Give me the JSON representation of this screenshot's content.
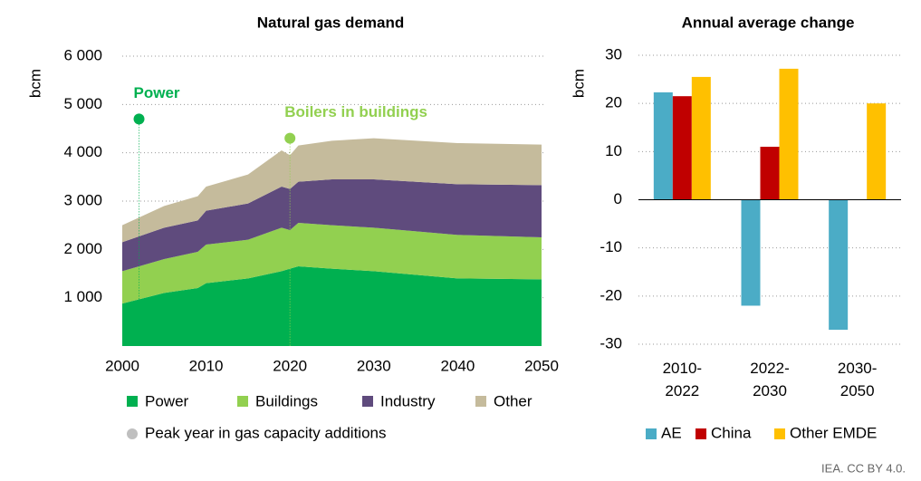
{
  "chart_data": [
    {
      "type": "stacked_area",
      "title": "Natural gas demand",
      "ylabel": "bcm",
      "x": [
        2000,
        2005,
        2009,
        2010,
        2015,
        2019,
        2020,
        2021,
        2025,
        2030,
        2040,
        2050
      ],
      "series": [
        {
          "name": "Power",
          "color": "#00b050",
          "values": [
            880,
            1100,
            1200,
            1300,
            1400,
            1550,
            1600,
            1650,
            1600,
            1550,
            1400,
            1380
          ]
        },
        {
          "name": "Buildings",
          "color": "#92d050",
          "values": [
            670,
            700,
            750,
            800,
            800,
            900,
            800,
            900,
            900,
            900,
            900,
            870
          ]
        },
        {
          "name": "Industry",
          "color": "#5f4b7d",
          "values": [
            600,
            650,
            650,
            700,
            750,
            850,
            850,
            850,
            950,
            1000,
            1050,
            1080
          ]
        },
        {
          "name": "Other",
          "color": "#c5bb9c",
          "values": [
            350,
            450,
            500,
            500,
            600,
            750,
            700,
            750,
            800,
            850,
            850,
            840
          ]
        }
      ],
      "annotations": [
        {
          "text": "Power",
          "x": 2002,
          "y": 4700,
          "color": "#00b050"
        },
        {
          "text": "Boilers in buildings",
          "x": 2020,
          "y": 4300,
          "color": "#92d050"
        }
      ],
      "marker_legend": "Peak year in gas capacity additions",
      "xlim": [
        2000,
        2050
      ],
      "xticks": [
        2000,
        2010,
        2020,
        2030,
        2040,
        2050
      ],
      "ylim": [
        0,
        6000
      ],
      "yticks": [
        {
          "value": 1000,
          "label": "1 000"
        },
        {
          "value": 2000,
          "label": "2 000"
        },
        {
          "value": 3000,
          "label": "3 000"
        },
        {
          "value": 4000,
          "label": "4 000"
        },
        {
          "value": 5000,
          "label": "5 000"
        },
        {
          "value": 6000,
          "label": "6 000"
        }
      ],
      "grid": true
    },
    {
      "type": "grouped_bar",
      "title": "Annual average change",
      "ylabel": "bcm",
      "categories": [
        "2010-2022",
        "2022-2030",
        "2030-2050"
      ],
      "series": [
        {
          "name": "AE",
          "color": "#4bacc6",
          "values": [
            22.3,
            -22,
            -27
          ]
        },
        {
          "name": "China",
          "color": "#c00000",
          "values": [
            21.5,
            11,
            0
          ]
        },
        {
          "name": "Other EMDE",
          "color": "#ffc000",
          "values": [
            25.5,
            27.2,
            20
          ]
        }
      ],
      "ylim": [
        -30,
        30
      ],
      "yticks": [
        -30,
        -20,
        -10,
        0,
        10,
        20,
        30
      ],
      "grid": true
    }
  ],
  "credit": "IEA. CC BY 4.0."
}
